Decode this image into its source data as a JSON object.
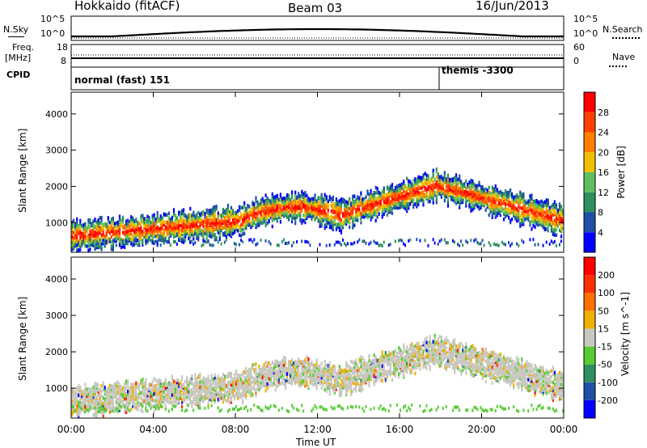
{
  "header": {
    "station": "Hokkaido (fitACF)",
    "beam": "Beam 03",
    "date": "16/Jun/2013"
  },
  "panels": {
    "nsky_label": "N.Sky",
    "nsearch_label": "N.Search",
    "freq_label_1": "Freq.",
    "freq_label_2": "[MHz]",
    "nave_label": "Nave",
    "cpid_label": "CPID",
    "left_ticks_top": [
      "10^5",
      "10^0"
    ],
    "right_ticks_top": [
      "10^5",
      "10^0"
    ],
    "left_ticks_freq": [
      "18",
      "8"
    ],
    "right_ticks_freq": [
      "60",
      "0"
    ],
    "cpid_entries": [
      "normal (fast) 151",
      "themis -3300"
    ]
  },
  "chart_data": [
    {
      "type": "heatmap",
      "title": "",
      "ylabel": "Slant Range [km]",
      "xlabel": "Time UT",
      "ylim": [
        180,
        4600
      ],
      "yticks": [
        "1000",
        "2000",
        "3000",
        "4000"
      ],
      "xticks": [
        "00:00",
        "04:00",
        "08:00",
        "12:00",
        "16:00",
        "20:00",
        "00:00"
      ],
      "colorbar_label": "Power [dB]",
      "colorbar_ticks": [
        "4",
        "8",
        "12",
        "16",
        "20",
        "24",
        "28"
      ],
      "colors": [
        "#0000ff",
        "#1f4fa8",
        "#2f8f60",
        "#5fbf5f",
        "#f0c000",
        "#ff8000",
        "#ff4000",
        "#ff0000"
      ]
    },
    {
      "type": "heatmap",
      "title": "",
      "ylabel": "Slant Range [km]",
      "xlabel": "Time UT",
      "ylim": [
        180,
        4600
      ],
      "yticks": [
        "1000",
        "2000",
        "3000",
        "4000"
      ],
      "xticks": [
        "00:00",
        "04:00",
        "08:00",
        "12:00",
        "16:00",
        "20:00",
        "00:00"
      ],
      "colorbar_label": "Velocity [m s^-1]",
      "colorbar_ticks": [
        "200",
        "100",
        "50",
        "15",
        "-15",
        "-50",
        "-100",
        "-200"
      ],
      "colors": [
        "#0000ff",
        "#1f4fa8",
        "#2f8f60",
        "#55cc33",
        "#c8c8c0",
        "#f0b000",
        "#ff7000",
        "#ff3000",
        "#ff0000"
      ]
    }
  ]
}
